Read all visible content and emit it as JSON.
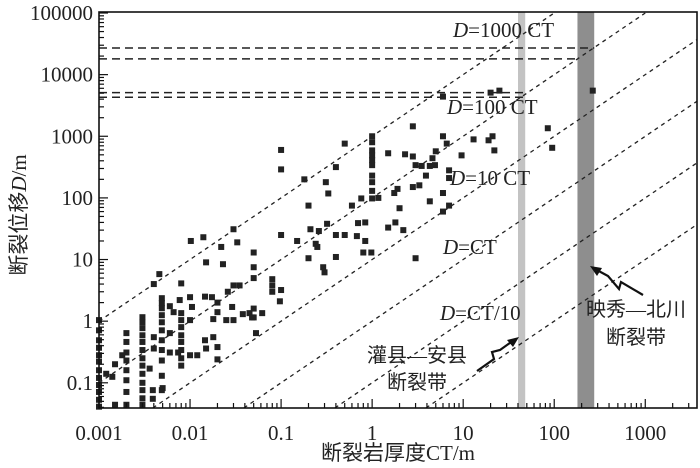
{
  "chart_data": {
    "type": "scatter",
    "title": "",
    "xlabel": "断裂岩厚度CT/m",
    "ylabel": "断裂位移D/m",
    "xscale": "log",
    "yscale": "log",
    "xlim": [
      0.001,
      3700
    ],
    "ylim": [
      0.039,
      100000
    ],
    "xticks": [
      0.001,
      0.01,
      0.1,
      1,
      10,
      100,
      1000
    ],
    "xtick_labels": [
      "0.001",
      "0.01",
      "0.1",
      "1",
      "10",
      "100",
      "1000"
    ],
    "yticks": [
      0.1,
      1,
      10,
      100,
      1000,
      10000,
      100000
    ],
    "ytick_labels": [
      "0.1",
      "1",
      "10",
      "100",
      "1000",
      "10000",
      "100000"
    ],
    "grid": false,
    "reference_lines": [
      {
        "ratio": 1000,
        "label": "D=1000 CT"
      },
      {
        "ratio": 100,
        "label": "D=100 CT"
      },
      {
        "ratio": 10,
        "label": "D=10 CT"
      },
      {
        "ratio": 1,
        "label": "D=CT"
      },
      {
        "ratio": 0.1,
        "label": "D=CT/10"
      },
      {
        "ratio": 0.01,
        "label": ""
      }
    ],
    "horizontal_lines": [
      {
        "D": 27000,
        "ct_end": 275
      },
      {
        "D": 18000,
        "ct_end": 180
      },
      {
        "D": 5100,
        "ct_end": 48
      },
      {
        "D": 4300,
        "ct_end": 48
      }
    ],
    "zones": [
      {
        "name": "灌县—安县",
        "name2": "断裂带",
        "ct_range": [
          40,
          48
        ],
        "color": "#c3c3c3"
      },
      {
        "name": "映秀—北川",
        "name2": "断裂带",
        "ct_range": [
          180,
          275
        ],
        "color": "#8e8e8e"
      }
    ],
    "marker_color": "#222222",
    "points": [
      [
        0.001,
        1.04
      ],
      [
        0.001,
        0.71
      ],
      [
        0.001,
        0.49
      ],
      [
        0.001,
        0.37
      ],
      [
        0.001,
        0.28
      ],
      [
        0.001,
        0.22
      ],
      [
        0.001,
        0.16
      ],
      [
        0.001,
        0.12
      ],
      [
        0.001,
        0.092
      ],
      [
        0.001,
        0.071
      ],
      [
        0.001,
        0.053
      ],
      [
        0.001,
        0.041
      ],
      [
        0.0012,
        0.14
      ],
      [
        0.0014,
        0.125
      ],
      [
        0.0015,
        0.2
      ],
      [
        0.0015,
        0.044
      ],
      [
        0.0018,
        0.28
      ],
      [
        0.002,
        0.64
      ],
      [
        0.002,
        0.46
      ],
      [
        0.002,
        0.31
      ],
      [
        0.002,
        0.23
      ],
      [
        0.002,
        0.16
      ],
      [
        0.002,
        0.11
      ],
      [
        0.002,
        0.071
      ],
      [
        0.002,
        0.044
      ],
      [
        0.003,
        1.16
      ],
      [
        0.003,
        0.96
      ],
      [
        0.003,
        0.77
      ],
      [
        0.003,
        0.59
      ],
      [
        0.003,
        0.46
      ],
      [
        0.003,
        0.34
      ],
      [
        0.003,
        0.25
      ],
      [
        0.003,
        0.19
      ],
      [
        0.003,
        0.14
      ],
      [
        0.003,
        0.1
      ],
      [
        0.003,
        0.076
      ],
      [
        0.003,
        0.056
      ],
      [
        0.003,
        0.044
      ],
      [
        0.0036,
        0.17
      ],
      [
        0.0039,
        0.076
      ],
      [
        0.0039,
        0.055
      ],
      [
        0.004,
        0.55
      ],
      [
        0.004,
        0.36
      ],
      [
        0.004,
        4.0
      ],
      [
        0.0046,
        5.8
      ],
      [
        0.0049,
        2.36
      ],
      [
        0.0049,
        1.96
      ],
      [
        0.0049,
        1.62
      ],
      [
        0.0049,
        1.25
      ],
      [
        0.0049,
        0.96
      ],
      [
        0.0049,
        0.71
      ],
      [
        0.0049,
        0.49
      ],
      [
        0.0049,
        0.34
      ],
      [
        0.0049,
        0.23
      ],
      [
        0.0049,
        0.13
      ],
      [
        0.0049,
        0.076
      ],
      [
        0.005,
        0.082
      ],
      [
        0.006,
        1.75
      ],
      [
        0.006,
        0.64
      ],
      [
        0.006,
        0.31
      ],
      [
        0.0066,
        1.4
      ],
      [
        0.0074,
        0.31
      ],
      [
        0.0077,
        2.2
      ],
      [
        0.008,
        4.1
      ],
      [
        0.008,
        1.35
      ],
      [
        0.008,
        1.04
      ],
      [
        0.008,
        0.8
      ],
      [
        0.008,
        0.59
      ],
      [
        0.008,
        0.46
      ],
      [
        0.008,
        0.34
      ],
      [
        0.008,
        0.25
      ],
      [
        0.008,
        0.19
      ],
      [
        0.01,
        2.45
      ],
      [
        0.01,
        1.04
      ],
      [
        0.01,
        0.28
      ],
      [
        0.0102,
        20
      ],
      [
        0.0105,
        1.7
      ],
      [
        0.012,
        0.28
      ],
      [
        0.014,
        23
      ],
      [
        0.0146,
        2.5
      ],
      [
        0.0146,
        0.49
      ],
      [
        0.015,
        9
      ],
      [
        0.015,
        0.36
      ],
      [
        0.0174,
        2.45
      ],
      [
        0.018,
        1.08
      ],
      [
        0.018,
        0.55
      ],
      [
        0.02,
        2.0
      ],
      [
        0.02,
        1.4
      ],
      [
        0.02,
        0.38
      ],
      [
        0.02,
        0.24
      ],
      [
        0.022,
        16
      ],
      [
        0.023,
        8.4
      ],
      [
        0.025,
        1.04
      ],
      [
        0.026,
        3.0
      ],
      [
        0.029,
        1.7
      ],
      [
        0.03,
        31
      ],
      [
        0.03,
        3.8
      ],
      [
        0.03,
        1.04
      ],
      [
        0.033,
        19
      ],
      [
        0.035,
        3.8
      ],
      [
        0.038,
        1.3
      ],
      [
        0.045,
        1.35
      ],
      [
        0.048,
        1.15
      ],
      [
        0.05,
        13
      ],
      [
        0.05,
        7.5
      ],
      [
        0.05,
        5
      ],
      [
        0.05,
        1.6
      ],
      [
        0.05,
        1.15
      ],
      [
        0.053,
        0.64
      ],
      [
        0.062,
        1.35
      ],
      [
        0.08,
        4.8
      ],
      [
        0.08,
        3.8
      ],
      [
        0.08,
        3.0
      ],
      [
        0.097,
        2.1
      ],
      [
        0.1,
        3.2
      ],
      [
        0.1,
        600
      ],
      [
        0.1,
        290
      ],
      [
        0.1,
        25
      ],
      [
        0.15,
        20
      ],
      [
        0.18,
        200
      ],
      [
        0.2,
        75
      ],
      [
        0.2,
        10.5
      ],
      [
        0.21,
        31
      ],
      [
        0.24,
        18
      ],
      [
        0.25,
        16
      ],
      [
        0.26,
        29
      ],
      [
        0.29,
        7.5
      ],
      [
        0.3,
        6.2
      ],
      [
        0.31,
        180
      ],
      [
        0.32,
        38
      ],
      [
        0.33,
        118
      ],
      [
        0.4,
        316
      ],
      [
        0.4,
        25
      ],
      [
        0.4,
        11
      ],
      [
        0.5,
        760
      ],
      [
        0.5,
        25
      ],
      [
        0.6,
        75
      ],
      [
        0.68,
        24
      ],
      [
        0.7,
        39
      ],
      [
        0.76,
        98
      ],
      [
        0.8,
        13
      ],
      [
        0.84,
        40
      ],
      [
        0.84,
        20
      ],
      [
        0.98,
        13
      ],
      [
        1,
        1000
      ],
      [
        1,
        800
      ],
      [
        1,
        590
      ],
      [
        1,
        490
      ],
      [
        1,
        410
      ],
      [
        1,
        340
      ],
      [
        1,
        230
      ],
      [
        1,
        180
      ],
      [
        1,
        130
      ],
      [
        1,
        98
      ],
      [
        1.17,
        100
      ],
      [
        1.5,
        530
      ],
      [
        1.5,
        33
      ],
      [
        1.75,
        120
      ],
      [
        1.8,
        40
      ],
      [
        1.9,
        140
      ],
      [
        2.0,
        68
      ],
      [
        2.2,
        30
      ],
      [
        2.3,
        510
      ],
      [
        2.8,
        1450
      ],
      [
        2.8,
        470
      ],
      [
        2.8,
        150
      ],
      [
        3.0,
        340
      ],
      [
        3.0,
        10.5
      ],
      [
        3.3,
        160
      ],
      [
        3.5,
        330
      ],
      [
        3.9,
        230
      ],
      [
        4.3,
        330
      ],
      [
        4.3,
        88
      ],
      [
        4.6,
        440
      ],
      [
        4.9,
        340
      ],
      [
        5.0,
        570
      ],
      [
        6.0,
        4400
      ],
      [
        6.0,
        1000
      ],
      [
        6.0,
        120
      ],
      [
        6.0,
        60
      ],
      [
        6.6,
        760
      ],
      [
        7,
        280
      ],
      [
        7,
        210
      ],
      [
        7,
        75
      ],
      [
        9.6,
        490
      ],
      [
        13,
        890
      ],
      [
        19,
        860
      ],
      [
        20,
        5100
      ],
      [
        21,
        1000
      ],
      [
        22,
        590
      ],
      [
        25,
        5500
      ],
      [
        85,
        1350
      ],
      [
        95,
        650
      ],
      [
        265,
        5500
      ]
    ]
  }
}
